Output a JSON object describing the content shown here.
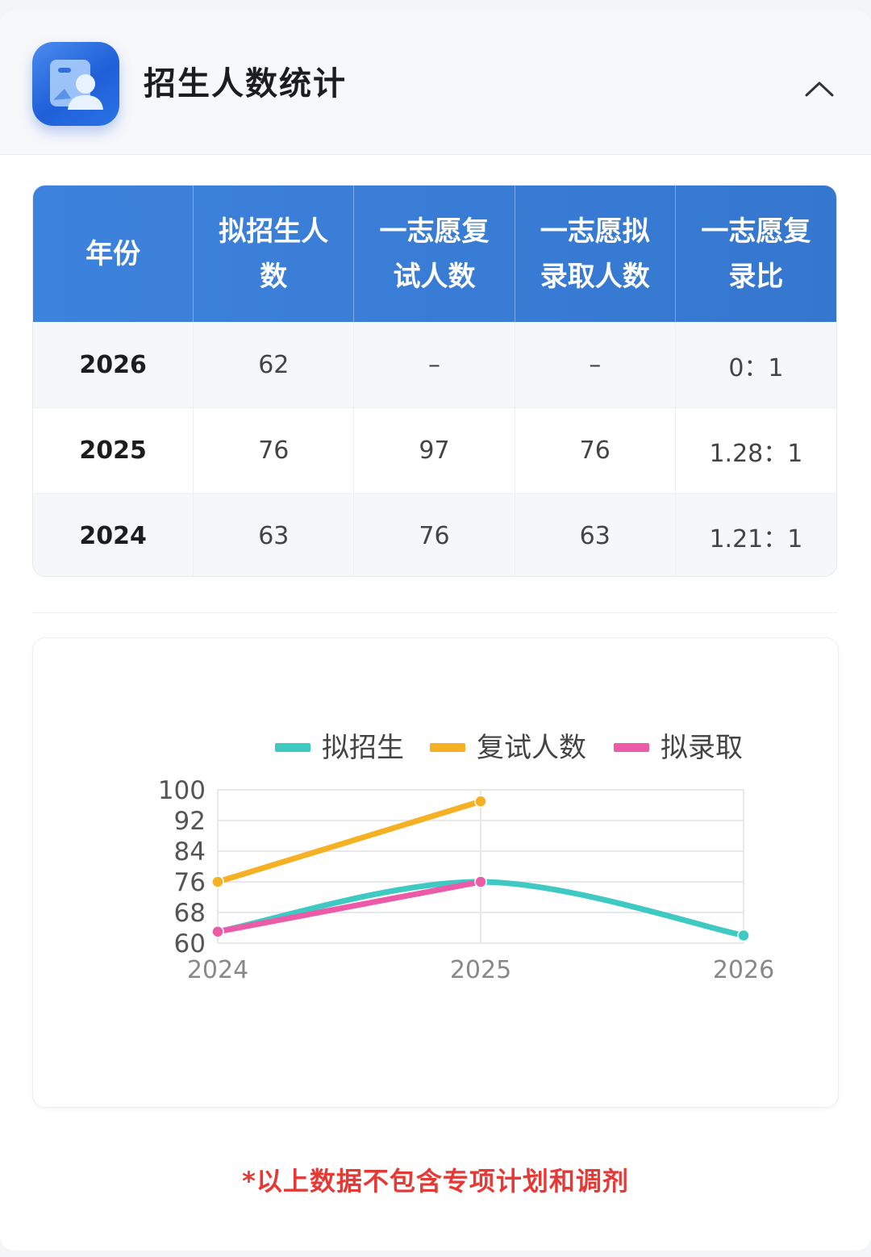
{
  "header": {
    "title": "招生人数统计",
    "icon": "profile-card-icon",
    "collapse_icon": "chevron-up-icon"
  },
  "table": {
    "columns": [
      "年份",
      "拟招生人数",
      "一志愿复试人数",
      "一志愿拟录取人数",
      "一志愿复录比"
    ],
    "rows": [
      [
        "2026",
        "62",
        "–",
        "–",
        "0：1"
      ],
      [
        "2025",
        "76",
        "97",
        "76",
        "1.28：1"
      ],
      [
        "2024",
        "63",
        "76",
        "63",
        "1.21：1"
      ]
    ]
  },
  "chart_data": {
    "type": "line",
    "x": [
      "2024",
      "2025",
      "2026"
    ],
    "series": [
      {
        "name": "拟招生",
        "values": [
          63,
          76,
          62
        ],
        "color": "#3ec9c3",
        "smooth": true
      },
      {
        "name": "复试人数",
        "values": [
          76,
          97,
          null
        ],
        "color": "#f6b023",
        "smooth": false
      },
      {
        "name": "拟录取",
        "values": [
          63,
          76,
          null
        ],
        "color": "#ec5aa8",
        "smooth": false
      }
    ],
    "yticks": [
      "100",
      "92",
      "84",
      "76",
      "68",
      "60"
    ],
    "ylim": [
      60,
      100
    ],
    "legend": "top",
    "grid": true
  },
  "footnote": "*以上数据不包含专项计划和调剂"
}
